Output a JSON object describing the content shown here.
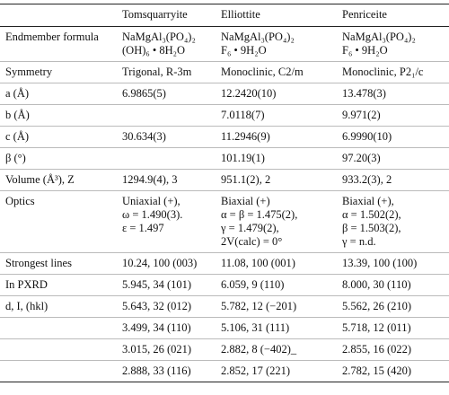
{
  "table": {
    "columns": [
      "Tomsquarryite",
      "Elliottite",
      "Penriceite"
    ],
    "rows": [
      [
        "Endmember formula",
        "NaMgAl₃(PO₄)₂\n(OH)₆ • 8H₂O",
        "NaMgAl₃(PO₄)₂\nF₆ • 9H₂O",
        "NaMgAl₃(PO₄)₂\nF₆ • 9H₂O"
      ],
      [
        "Symmetry",
        "Trigonal, R-3m",
        "Monoclinic, C2/m",
        "Monoclinic, P2₁/c"
      ],
      [
        "a (Å)",
        "6.9865(5)",
        "12.2420(10)",
        "13.478(3)"
      ],
      [
        "b (Å)",
        null,
        "7.0118(7)",
        "9.971(2)"
      ],
      [
        "c (Å)",
        "30.634(3)",
        "11.2946(9)",
        "6.9990(10)"
      ],
      [
        "β (°)",
        null,
        "101.19(1)",
        "97.20(3)"
      ],
      [
        "Volume (Å³), Z",
        "1294.9(4), 3",
        "951.1(2), 2",
        "933.2(3), 2"
      ],
      [
        "Optics",
        "Uniaxial (+),\nω = 1.490(3).\nε = 1.497",
        "Biaxial (+)\nα = β = 1.475(2),\nγ = 1.479(2),\n2V(calc) = 0°",
        "Biaxial (+),\nα = 1.502(2),\nβ = 1.503(2),\nγ = n.d."
      ],
      [
        "Strongest lines",
        "10.24, 100 (003)",
        "11.08, 100 (001)",
        "13.39, 100 (100)"
      ],
      [
        "In PXRD",
        "5.945, 34 (101)",
        "6.059, 9 (110)",
        "8.000, 30 (110)"
      ],
      [
        "d, I, (hkl)",
        "5.643, 32 (012)",
        "5.782, 12 (−201)",
        "5.562, 26 (210)"
      ],
      [
        null,
        "3.499, 34 (110)",
        "5.106, 31 (111)",
        "5.718, 12 (011)"
      ],
      [
        null,
        "3.015, 26 (021)",
        "2.882, 8 (−402)_",
        "2.855, 16 (022)"
      ],
      [
        null,
        "2.888, 33 (116)",
        "2.852, 17 (221)",
        "2.782, 15 (420)"
      ]
    ]
  }
}
